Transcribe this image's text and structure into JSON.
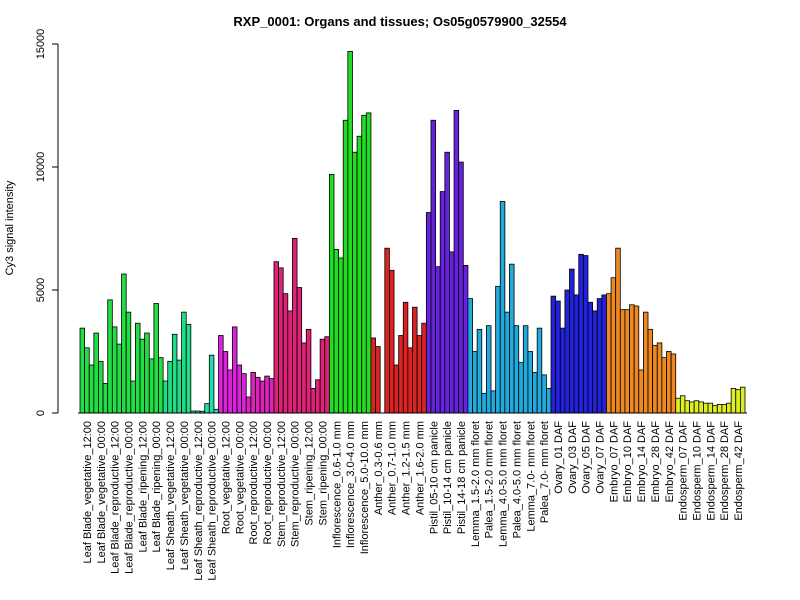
{
  "chart_data": {
    "type": "bar",
    "title": "RXP_0001: Organs and tissues; Os05g0579900_32554",
    "xlabel": "",
    "ylabel": "Cy3 signal intensity",
    "ylim": [
      0,
      15000
    ],
    "yticks": [
      0,
      5000,
      10000,
      15000
    ],
    "grid": false,
    "legend": "none",
    "groups": [
      {
        "label": "Leaf Blade_vegetative_12:00",
        "color": "#22dd44",
        "values": [
          3450,
          2650,
          1950
        ]
      },
      {
        "label": "Leaf Blade_vegetative_00:00",
        "color": "#22dd44",
        "values": [
          3250,
          2100,
          1200
        ]
      },
      {
        "label": "Leaf Blade_reproductive_12:00",
        "color": "#22dd44",
        "values": [
          4600,
          3500,
          2800
        ]
      },
      {
        "label": "Leaf Blade_reproductive_00:00",
        "color": "#22dd44",
        "values": [
          5650,
          4100,
          1300
        ]
      },
      {
        "label": "Leaf Blade_ripening_12:00",
        "color": "#22dd44",
        "values": [
          3650,
          3000,
          3250
        ]
      },
      {
        "label": "Leaf Blade_ripening_00:00",
        "color": "#22dd44",
        "values": [
          2200,
          4450,
          2250
        ]
      },
      {
        "label": "Leaf Sheath_vegetative_12:00",
        "color": "#22dd88",
        "values": [
          1300,
          2100,
          3200
        ]
      },
      {
        "label": "Leaf Sheath_vegetative_00:00",
        "color": "#22dd88",
        "values": [
          2150,
          4100,
          3600
        ]
      },
      {
        "label": "Leaf Sheath_reproductive_12:00",
        "color": "#22ddaa",
        "values": [
          80,
          80,
          70
        ]
      },
      {
        "label": "Leaf Sheath_reproductive_00:00",
        "color": "#22ddaa",
        "values": [
          380,
          2350,
          150
        ]
      },
      {
        "label": "Root_vegetative_12:00",
        "color": "#dd22dd",
        "values": [
          3150,
          2500,
          1750
        ]
      },
      {
        "label": "Root_vegetative_00:00",
        "color": "#dd22dd",
        "values": [
          3500,
          1950,
          1600
        ]
      },
      {
        "label": "Root_reproductive_12:00",
        "color": "#dd22bb",
        "values": [
          650,
          1650,
          1450
        ]
      },
      {
        "label": "Root_reproductive_00:00",
        "color": "#dd22bb",
        "values": [
          1300,
          1500,
          1400
        ]
      },
      {
        "label": "Stem_reproductive_12:00",
        "color": "#dd2277",
        "values": [
          6150,
          5900,
          4850
        ]
      },
      {
        "label": "Stem_reproductive_00:00",
        "color": "#dd2277",
        "values": [
          4150,
          7100,
          5100
        ]
      },
      {
        "label": "Stem_ripening_12:00",
        "color": "#dd2277",
        "values": [
          2850,
          3400,
          1000
        ]
      },
      {
        "label": "Stem_ripening_00:00",
        "color": "#dd2277",
        "values": [
          1350,
          3000,
          3100
        ]
      },
      {
        "label": "Inflorescence_0.6-1.0 mm",
        "color": "#22dd22",
        "values": [
          9700,
          6650,
          6300
        ]
      },
      {
        "label": "Inflorescence_3.0-4.0 mm",
        "color": "#22dd22",
        "values": [
          11900,
          14700,
          10600
        ]
      },
      {
        "label": "Inflorescence_5.0-10.0 mm",
        "color": "#22dd22",
        "values": [
          11250,
          12100,
          12200
        ]
      },
      {
        "label": "Anther_0.3-0.6 mm",
        "color": "#dd2222",
        "values": [
          3050,
          2700
        ]
      },
      {
        "label": "Anther_0.7-1.0 mm",
        "color": "#dd2222",
        "values": [
          6700,
          5800,
          1950
        ]
      },
      {
        "label": "Anther_1.2-1.5 mm",
        "color": "#dd2222",
        "values": [
          3150,
          4500,
          2650
        ]
      },
      {
        "label": "Anther_1.6-2.0 mm",
        "color": "#dd2222",
        "values": [
          4300,
          3150,
          3650
        ]
      },
      {
        "label": "Pistil_05-10 cm panicle",
        "color": "#6622dd",
        "values": [
          8150,
          11900,
          5950
        ]
      },
      {
        "label": "Pistil_10-14 cm panicle",
        "color": "#6622dd",
        "values": [
          9000,
          10600,
          6550
        ]
      },
      {
        "label": "Pistil_14-18 cm panicle",
        "color": "#6622dd",
        "values": [
          12300,
          10200,
          6000
        ]
      },
      {
        "label": "Lemma_1.5-2.0 mm floret",
        "color": "#22aadd",
        "values": [
          4650,
          2500,
          3400
        ]
      },
      {
        "label": "Palea_1.5-2.0 mm floret",
        "color": "#22aadd",
        "values": [
          800,
          3550,
          900
        ]
      },
      {
        "label": "Lemma_4.0-5.0 mm floret",
        "color": "#22aadd",
        "values": [
          5150,
          8600,
          4100
        ]
      },
      {
        "label": "Palea_4.0-5.0 mm floret",
        "color": "#22aadd",
        "values": [
          6050,
          3550,
          2050
        ]
      },
      {
        "label": "Lemma_7.0- mm floret",
        "color": "#22aadd",
        "values": [
          3550,
          2500,
          1650
        ]
      },
      {
        "label": "Palea_7.0- mm floret",
        "color": "#22aadd",
        "values": [
          3450,
          1550,
          1000
        ]
      },
      {
        "label": "Ovary_01 DAF",
        "color": "#2222dd",
        "values": [
          4750,
          4550,
          3450
        ]
      },
      {
        "label": "Ovary_03 DAF",
        "color": "#2222dd",
        "values": [
          5000,
          5850,
          4800
        ]
      },
      {
        "label": "Ovary_05 DAF",
        "color": "#2222dd",
        "values": [
          6450,
          6400,
          4500
        ]
      },
      {
        "label": "Ovary_07 DAF",
        "color": "#2222dd",
        "values": [
          4150,
          4650,
          4800
        ]
      },
      {
        "label": "Embryo_07 DAF",
        "color": "#ee8822",
        "values": [
          4850,
          5500,
          6700
        ]
      },
      {
        "label": "Embryo_10 DAF",
        "color": "#ee8822",
        "values": [
          4200,
          4200,
          4400
        ]
      },
      {
        "label": "Embryo_14 DAF",
        "color": "#ee8822",
        "values": [
          4350,
          1750,
          4100
        ]
      },
      {
        "label": "Embryo_28 DAF",
        "color": "#ee8822",
        "values": [
          3400,
          2750,
          2850
        ]
      },
      {
        "label": "Embryo_42 DAF",
        "color": "#ee8822",
        "values": [
          2250,
          2500,
          2400
        ]
      },
      {
        "label": "Endosperm_07 DAF",
        "color": "#ddee22",
        "values": [
          600,
          700,
          500
        ]
      },
      {
        "label": "Endosperm_10 DAF",
        "color": "#ddee22",
        "values": [
          450,
          500,
          450
        ]
      },
      {
        "label": "Endosperm_14 DAF",
        "color": "#ddee22",
        "values": [
          400,
          400,
          300
        ]
      },
      {
        "label": "Endosperm_28 DAF",
        "color": "#ddee22",
        "values": [
          350,
          350,
          400
        ]
      },
      {
        "label": "Endosperm_42 DAF",
        "color": "#ddee22",
        "values": [
          1000,
          950,
          1050
        ]
      }
    ]
  }
}
